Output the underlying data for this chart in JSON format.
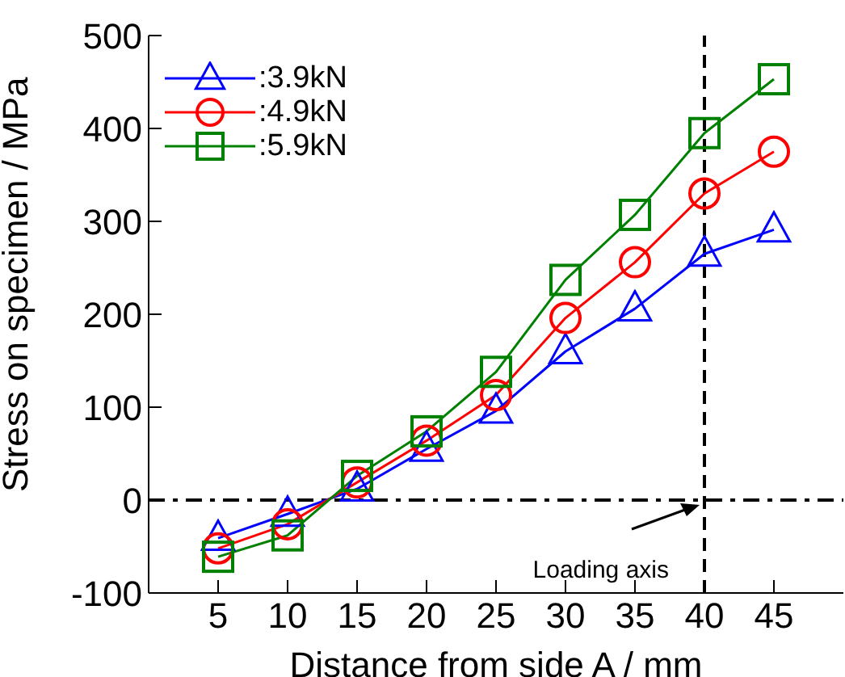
{
  "chart_data": {
    "type": "line",
    "xlabel": "Distance from side A / mm",
    "ylabel": "Stress on specimen / MPa",
    "x": [
      5,
      10,
      15,
      20,
      25,
      30,
      35,
      40,
      45
    ],
    "series": [
      {
        "name": ":3.9kN",
        "color": "#0000ff",
        "marker": "triangle",
        "values": [
          -41,
          -15,
          12,
          55,
          96,
          160,
          206,
          265,
          291
        ]
      },
      {
        "name": ":4.9kN",
        "color": "#ff0000",
        "marker": "circle",
        "values": [
          -52,
          -26,
          19,
          64,
          113,
          196,
          256,
          330,
          375
        ]
      },
      {
        "name": ":5.9kN",
        "color": "#008000",
        "marker": "square",
        "values": [
          -61,
          -38,
          26,
          74,
          138,
          237,
          307,
          395,
          453
        ]
      }
    ],
    "xlim": [
      0,
      50
    ],
    "xticks": [
      5,
      10,
      15,
      20,
      25,
      30,
      35,
      40,
      45
    ],
    "ylim": [
      -100,
      500
    ],
    "yticks": [
      -100,
      0,
      100,
      200,
      300,
      400,
      500
    ],
    "ref_lines": [
      {
        "axis": "y",
        "value": 0,
        "line_style": "dashdot",
        "color": "#000000"
      },
      {
        "axis": "x",
        "value": 40,
        "line_style": "dashed",
        "color": "#000000"
      }
    ],
    "annotations": [
      {
        "text": "Loading axis",
        "x": 40,
        "y": 0
      }
    ],
    "legend": "top left",
    "grid": false,
    "line_style": "solid"
  }
}
